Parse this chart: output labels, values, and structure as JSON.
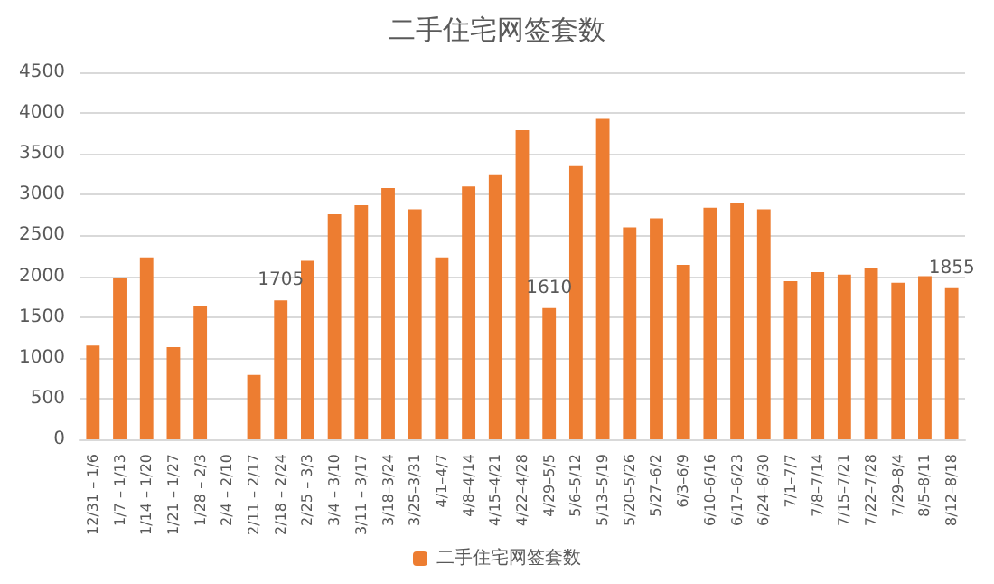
{
  "chart_data": {
    "type": "bar",
    "title": "二手住宅网签套数",
    "categories": [
      "12/31 – 1/6",
      "1/7 – 1/13",
      "1/14 – 1/20",
      "1/21 – 1/27",
      "1/28 – 2/3",
      "2/4 – 2/10",
      "2/11 – 2/17",
      "2/18 – 2/24",
      "2/25 – 3/3",
      "3/4 – 3/10",
      "3/11 – 3/17",
      "3/18–3/24",
      "3/25–3/31",
      "4/1–4/7",
      "4/8–4/14",
      "4/15–4/21",
      "4/22–4/28",
      "4/29–5/5",
      "5/6–5/12",
      "5/13–5/19",
      "5/20–5/26",
      "5/27–6/2",
      "6/3–6/9",
      "6/10–6/16",
      "6/17–6/23",
      "6/24–6/30",
      "7/1–7/7",
      "7/8–7/14",
      "7/15–7/21",
      "7/22–7/28",
      "7/29–8/4",
      "8/5–8/11",
      "8/12–8/18"
    ],
    "series": [
      {
        "name": "二手住宅网签套数",
        "color": "#ed7d31",
        "values": [
          1150,
          1980,
          2230,
          1130,
          1630,
          null,
          790,
          1705,
          2190,
          2760,
          2870,
          3080,
          2820,
          2230,
          3100,
          3240,
          3790,
          1610,
          3350,
          3930,
          2600,
          2710,
          2140,
          2840,
          2900,
          2820,
          1940,
          2050,
          2020,
          2100,
          1920,
          2000,
          1855
        ],
        "value_labels": [
          null,
          null,
          null,
          null,
          null,
          null,
          null,
          "1705",
          null,
          null,
          null,
          null,
          null,
          null,
          null,
          null,
          null,
          "1610",
          null,
          null,
          null,
          null,
          null,
          null,
          null,
          null,
          null,
          null,
          null,
          null,
          null,
          null,
          "1855"
        ]
      }
    ],
    "ylim": [
      0,
      4500
    ],
    "yticks": [
      0,
      500,
      1000,
      1500,
      2000,
      2500,
      3000,
      3500,
      4000,
      4500
    ],
    "grid": "y",
    "legend": "bottom"
  }
}
